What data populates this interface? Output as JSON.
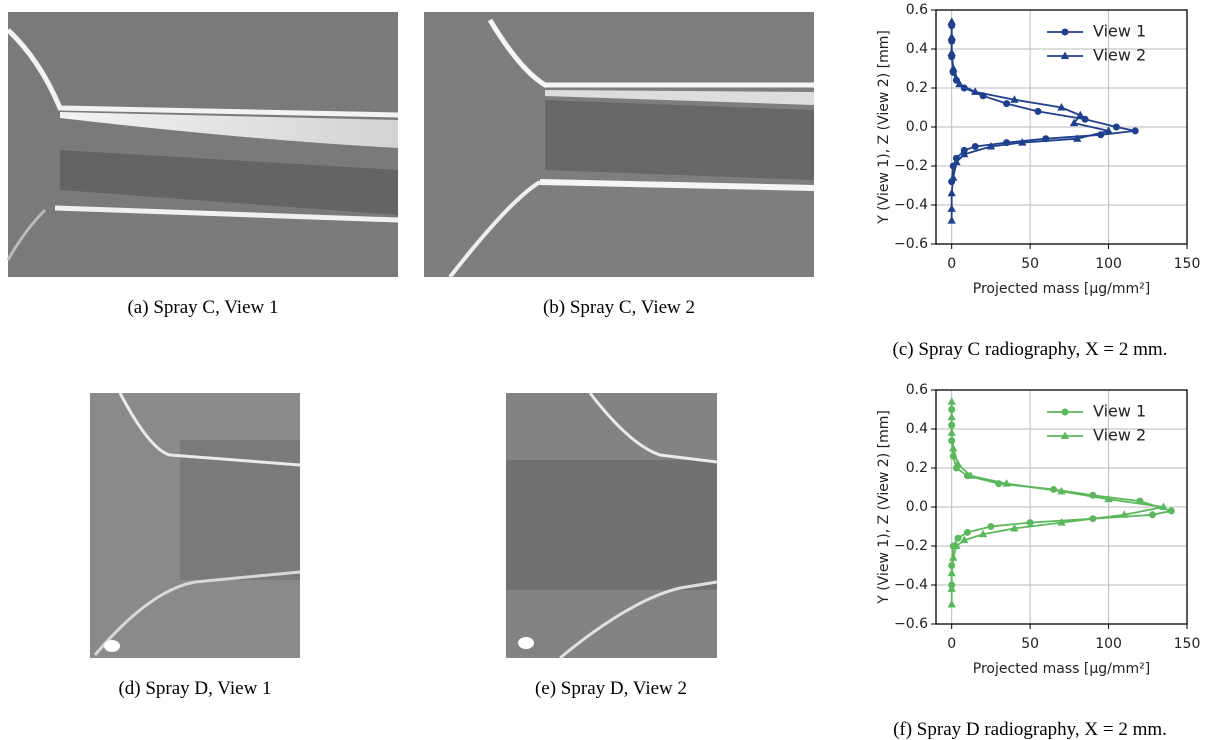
{
  "figures": [
    {
      "caption": "(a) Spray C, View 1"
    },
    {
      "caption": "(b) Spray C, View 2"
    },
    {
      "caption": "(d) Spray D, View 1"
    },
    {
      "caption": "(e) Spray D, View 2"
    }
  ],
  "chart_data": [
    {
      "type": "line",
      "caption": "(c) Spray C radiography, X = 2 mm.",
      "xlabel": "Projected mass [µg/mm²]",
      "ylabel": "Y (View 1), Z (View 2) [mm]",
      "xlim": [
        -10,
        150
      ],
      "xticks": [
        0,
        50,
        100,
        150
      ],
      "ylim": [
        -0.6,
        0.6
      ],
      "yticks": [
        {
          "value": -0.6,
          "label": "−0.6"
        },
        {
          "value": -0.4,
          "label": "−0.4"
        },
        {
          "value": -0.2,
          "label": "−0.2"
        },
        {
          "value": 0,
          "label": "0.0"
        },
        {
          "value": 0.2,
          "label": "0.2"
        },
        {
          "value": 0.4,
          "label": "0.4"
        },
        {
          "value": 0.6,
          "label": "0.6"
        }
      ],
      "grid": true,
      "legend": "upper right",
      "series": [
        {
          "name": "View 1",
          "color": "#1f3f8f",
          "marker": "circle",
          "x": [
            0,
            0,
            0,
            1,
            3,
            8,
            20,
            35,
            55,
            85,
            105,
            117,
            95,
            60,
            35,
            15,
            8,
            3,
            1,
            0
          ],
          "y": [
            0.52,
            0.44,
            0.36,
            0.28,
            0.24,
            0.2,
            0.16,
            0.12,
            0.08,
            0.04,
            0.0,
            -0.02,
            -0.04,
            -0.06,
            -0.08,
            -0.1,
            -0.12,
            -0.16,
            -0.2,
            -0.28
          ]
        },
        {
          "name": "View 2",
          "color": "#1f3f8f",
          "marker": "triangle",
          "x": [
            0,
            0,
            0,
            1,
            5,
            15,
            40,
            70,
            82,
            78,
            100,
            80,
            45,
            25,
            8,
            3,
            1,
            0,
            0,
            0
          ],
          "y": [
            0.54,
            0.46,
            0.38,
            0.3,
            0.22,
            0.18,
            0.14,
            0.1,
            0.06,
            0.02,
            -0.02,
            -0.06,
            -0.08,
            -0.1,
            -0.14,
            -0.18,
            -0.26,
            -0.34,
            -0.42,
            -0.48
          ]
        }
      ]
    },
    {
      "type": "line",
      "caption": "(f) Spray D radiography, X = 2 mm.",
      "xlabel": "Projected mass [µg/mm²]",
      "ylabel": "Y (View 1), Z (View 2) [mm]",
      "xlim": [
        -10,
        150
      ],
      "xticks": [
        0,
        50,
        100,
        150
      ],
      "ylim": [
        -0.6,
        0.6
      ],
      "yticks": [
        {
          "value": -0.6,
          "label": "−0.6"
        },
        {
          "value": -0.4,
          "label": "−0.4"
        },
        {
          "value": -0.2,
          "label": "−0.2"
        },
        {
          "value": 0,
          "label": "0.0"
        },
        {
          "value": 0.2,
          "label": "0.2"
        },
        {
          "value": 0.4,
          "label": "0.4"
        },
        {
          "value": 0.6,
          "label": "0.6"
        }
      ],
      "grid": true,
      "legend": "upper right",
      "series": [
        {
          "name": "View 1",
          "color": "#5cb85c",
          "marker": "circle",
          "x": [
            0,
            0,
            0,
            1,
            3,
            10,
            30,
            65,
            90,
            120,
            140,
            128,
            90,
            50,
            25,
            10,
            4,
            1,
            0,
            0
          ],
          "y": [
            0.5,
            0.42,
            0.34,
            0.26,
            0.2,
            0.16,
            0.12,
            0.09,
            0.06,
            0.03,
            -0.02,
            -0.04,
            -0.06,
            -0.08,
            -0.1,
            -0.13,
            -0.16,
            -0.2,
            -0.3,
            -0.4
          ]
        },
        {
          "name": "View 2",
          "color": "#5cb85c",
          "marker": "triangle",
          "x": [
            0,
            0,
            0,
            1,
            4,
            12,
            35,
            70,
            100,
            135,
            110,
            70,
            40,
            20,
            8,
            3,
            1,
            0,
            0,
            0
          ],
          "y": [
            0.54,
            0.46,
            0.38,
            0.3,
            0.22,
            0.16,
            0.12,
            0.08,
            0.04,
            0.0,
            -0.04,
            -0.08,
            -0.11,
            -0.14,
            -0.17,
            -0.2,
            -0.26,
            -0.34,
            -0.42,
            -0.5
          ]
        }
      ]
    }
  ]
}
